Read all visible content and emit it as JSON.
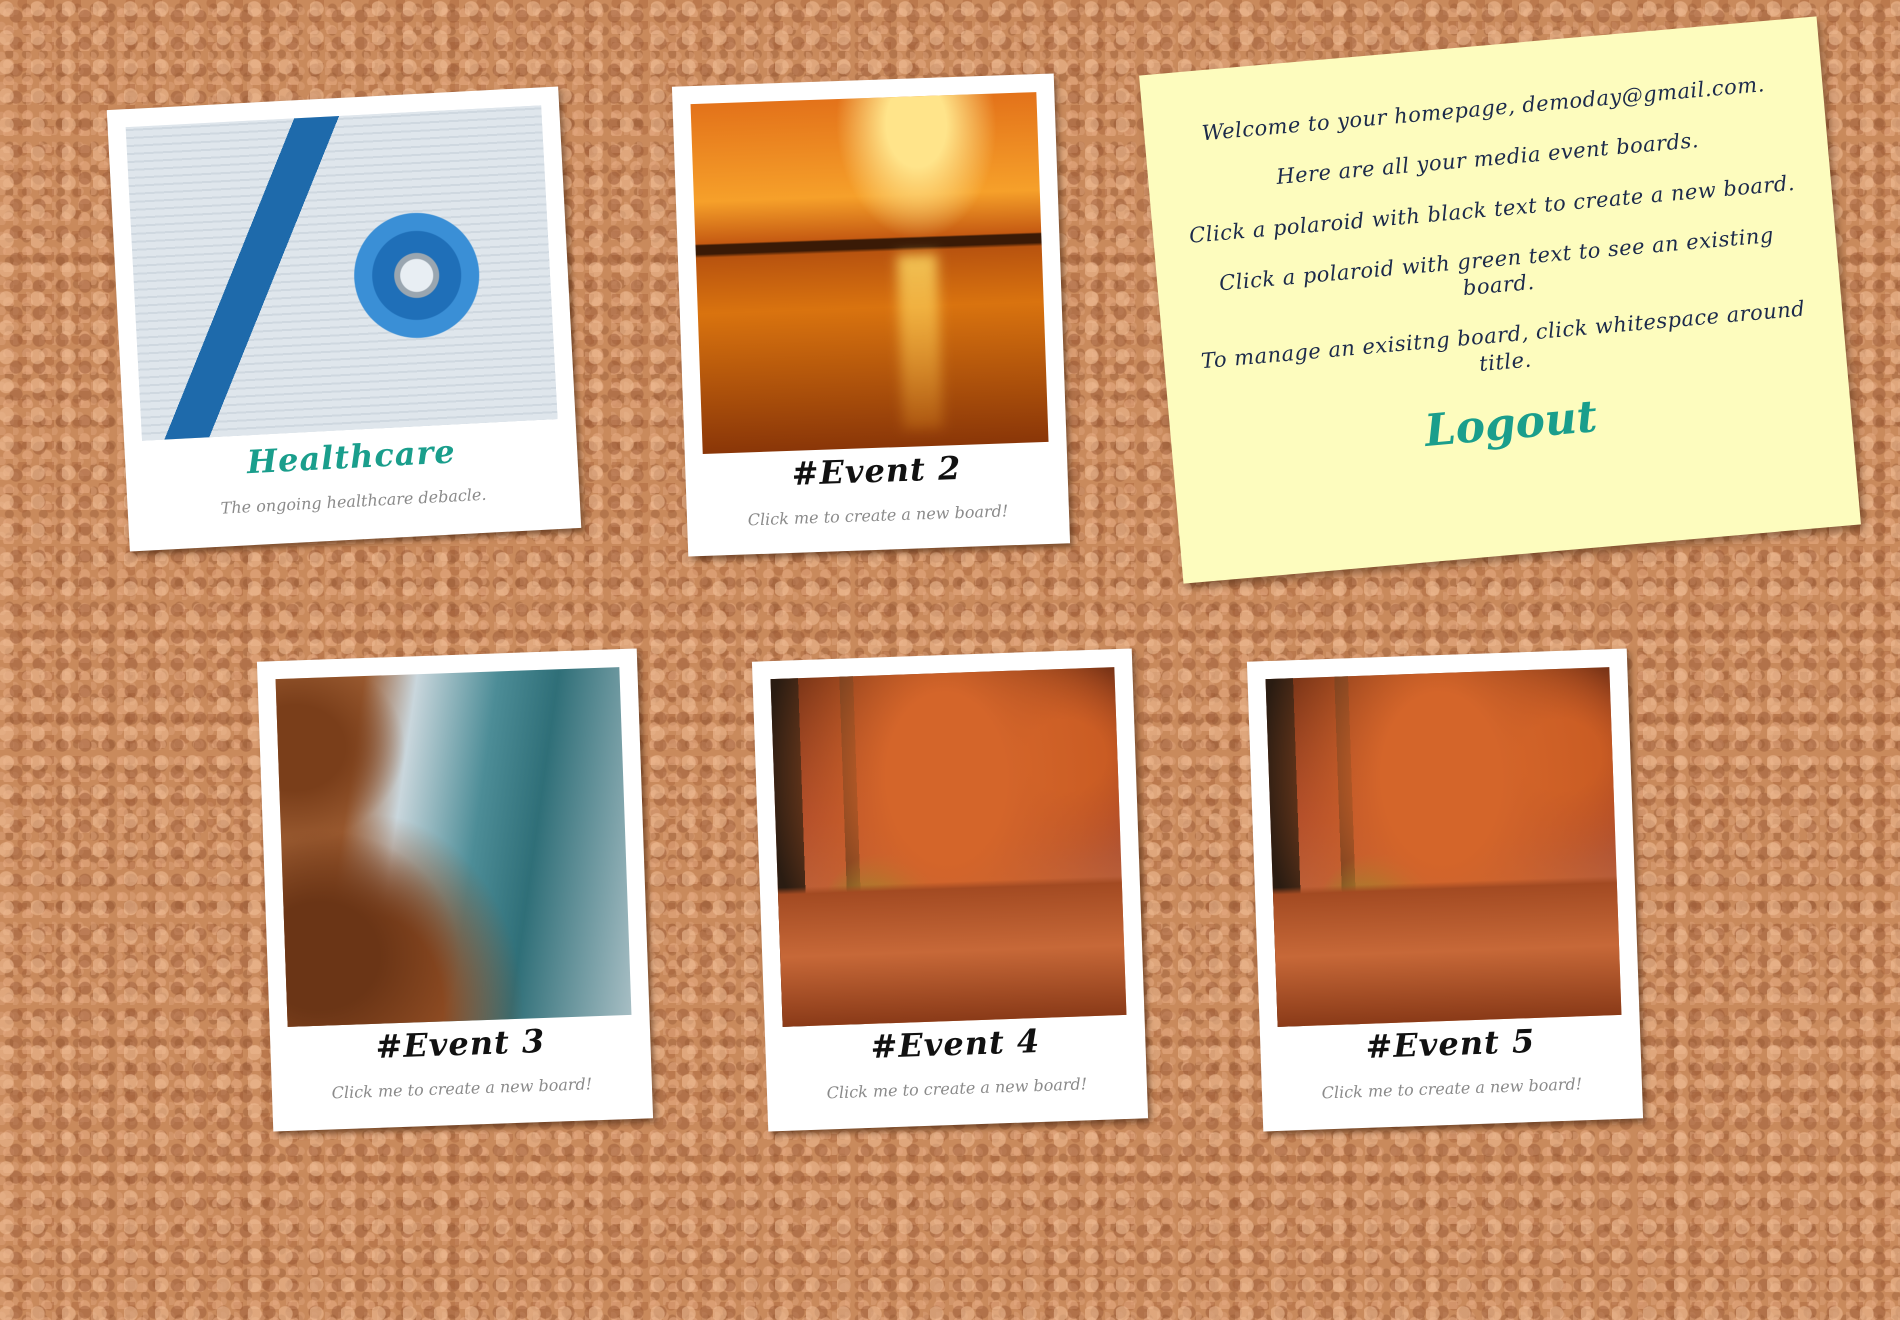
{
  "polaroids": [
    {
      "title": "Healthcare",
      "caption": "The ongoing healthcare debacle.",
      "kind": "existing",
      "photo": "stethoscope"
    },
    {
      "title": "#Event 2",
      "caption": "Click me to create a new board!",
      "kind": "new",
      "photo": "sunset-lake"
    },
    {
      "title": "#Event 3",
      "caption": "Click me to create a new board!",
      "kind": "new",
      "photo": "rocky-coast"
    },
    {
      "title": "#Event 4",
      "caption": "Click me to create a new board!",
      "kind": "new",
      "photo": "autumn-trees"
    },
    {
      "title": "#Event 5",
      "caption": "Click me to create a new board!",
      "kind": "new",
      "photo": "autumn-trees"
    }
  ],
  "note": {
    "lines": [
      "Welcome to your homepage, demoday@gmail.com.",
      "Here are all your media event boards.",
      "Click a polaroid with black text to create a new board.",
      "Click a polaroid with green text to see an existing board.",
      "To manage an exisitng board, click whitespace around title."
    ],
    "logout_label": "Logout"
  },
  "colors": {
    "cork": "#c98a5c",
    "note": "#fdfcbe",
    "accent_green": "#1a9e8c",
    "title_black": "#111111",
    "caption_gray": "#8a8a8a",
    "note_text": "#1c2a4a"
  }
}
